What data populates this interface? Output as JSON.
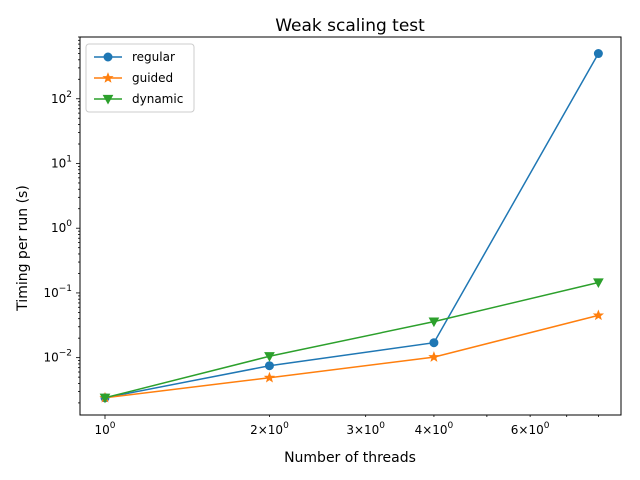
{
  "chart_data": {
    "type": "line",
    "title": "Weak scaling test",
    "xlabel": "Number of threads",
    "ylabel": "Timing per run (s)",
    "xscale": "log",
    "yscale": "log",
    "x": [
      1,
      2,
      4,
      8
    ],
    "xlim": [
      0.9,
      8.8
    ],
    "ylim": [
      0.0013,
      900
    ],
    "x_tick_labels": [
      {
        "value": 1,
        "base": "10",
        "exp": "0"
      },
      {
        "value": 2,
        "base": "2×10",
        "exp": "0"
      },
      {
        "value": 3,
        "base": "3×10",
        "exp": "0"
      },
      {
        "value": 4,
        "base": "4×10",
        "exp": "0"
      },
      {
        "value": 6,
        "base": "6×10",
        "exp": "0"
      }
    ],
    "y_tick_labels": [
      {
        "value": 0.01,
        "base": "10",
        "exp": "−2"
      },
      {
        "value": 0.1,
        "base": "10",
        "exp": "−1"
      },
      {
        "value": 1,
        "base": "10",
        "exp": "0"
      },
      {
        "value": 10,
        "base": "10",
        "exp": "1"
      },
      {
        "value": 100,
        "base": "10",
        "exp": "2"
      }
    ],
    "legend_position": "top-left",
    "grid": false,
    "series": [
      {
        "name": "regular",
        "color": "#1f77b4",
        "marker": "circle",
        "values": [
          0.0024,
          0.0075,
          0.017,
          500
        ]
      },
      {
        "name": "guided",
        "color": "#ff7f0e",
        "marker": "star",
        "values": [
          0.0024,
          0.0049,
          0.0102,
          0.045
        ]
      },
      {
        "name": "dynamic",
        "color": "#2ca02c",
        "marker": "triangle-down",
        "values": [
          0.0024,
          0.0105,
          0.036,
          0.145
        ]
      }
    ]
  }
}
